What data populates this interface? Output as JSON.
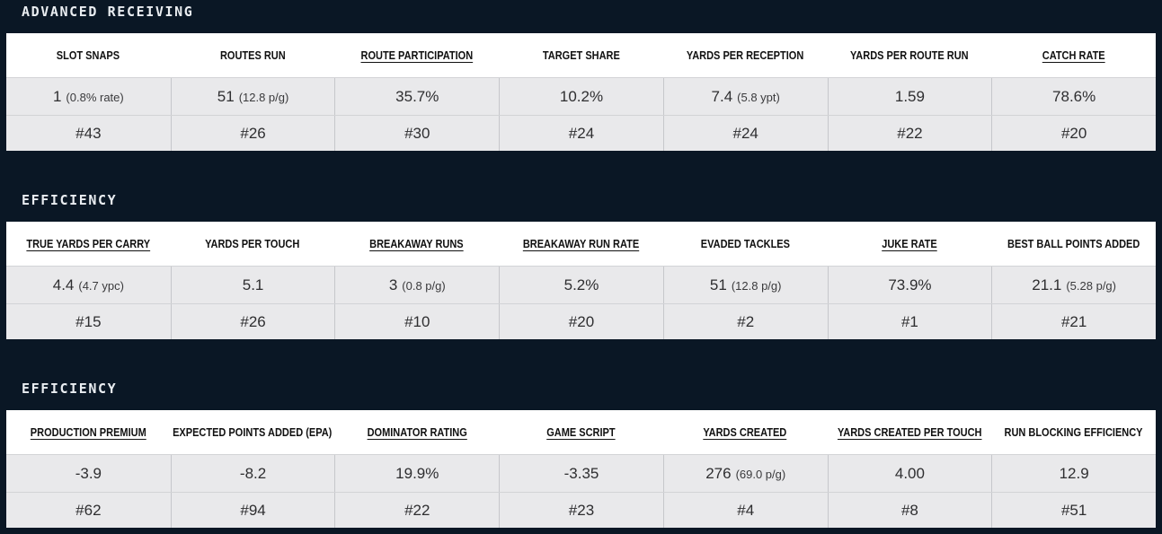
{
  "colors": {
    "page_background": "#0a1725",
    "section_title_text": "#e9edf1",
    "header_row_background": "#ffffff",
    "header_text": "#111111",
    "data_row_background": "#e9e9eb",
    "data_text": "#2e2e30",
    "row_divider": "#d2d3d6",
    "column_divider": "#c6c7cb"
  },
  "sections": [
    {
      "title": "ADVANCED RECEIVING",
      "columns": [
        {
          "label": "SLOT SNAPS",
          "underlined": false,
          "value": "1",
          "note": "(0.8% rate)",
          "rank": "#43"
        },
        {
          "label": "ROUTES RUN",
          "underlined": false,
          "value": "51",
          "note": "(12.8 p/g)",
          "rank": "#26"
        },
        {
          "label": "ROUTE PARTICIPATION",
          "underlined": true,
          "value": "35.7%",
          "note": "",
          "rank": "#30"
        },
        {
          "label": "TARGET SHARE",
          "underlined": false,
          "value": "10.2%",
          "note": "",
          "rank": "#24"
        },
        {
          "label": "YARDS PER RECEPTION",
          "underlined": false,
          "value": "7.4",
          "note": "(5.8 ypt)",
          "rank": "#24"
        },
        {
          "label": "YARDS PER ROUTE RUN",
          "underlined": false,
          "value": "1.59",
          "note": "",
          "rank": "#22"
        },
        {
          "label": "CATCH RATE",
          "underlined": true,
          "value": "78.6%",
          "note": "",
          "rank": "#20"
        }
      ]
    },
    {
      "title": "EFFICIENCY",
      "columns": [
        {
          "label": "TRUE YARDS PER CARRY",
          "underlined": true,
          "value": "4.4",
          "note": "(4.7 ypc)",
          "rank": "#15"
        },
        {
          "label": "YARDS PER TOUCH",
          "underlined": false,
          "value": "5.1",
          "note": "",
          "rank": "#26"
        },
        {
          "label": "BREAKAWAY RUNS",
          "underlined": true,
          "value": "3",
          "note": "(0.8 p/g)",
          "rank": "#10"
        },
        {
          "label": "BREAKAWAY RUN RATE",
          "underlined": true,
          "value": "5.2%",
          "note": "",
          "rank": "#20"
        },
        {
          "label": "EVADED TACKLES",
          "underlined": false,
          "value": "51",
          "note": "(12.8 p/g)",
          "rank": "#2"
        },
        {
          "label": "JUKE RATE",
          "underlined": true,
          "value": "73.9%",
          "note": "",
          "rank": "#1"
        },
        {
          "label": "BEST BALL POINTS ADDED",
          "underlined": false,
          "value": "21.1",
          "note": "(5.28 p/g)",
          "rank": "#21"
        }
      ]
    },
    {
      "title": "EFFICIENCY",
      "columns": [
        {
          "label": "PRODUCTION PREMIUM",
          "underlined": true,
          "value": "-3.9",
          "note": "",
          "rank": "#62"
        },
        {
          "label": "EXPECTED POINTS ADDED (EPA)",
          "underlined": false,
          "value": "-8.2",
          "note": "",
          "rank": "#94"
        },
        {
          "label": "DOMINATOR RATING",
          "underlined": true,
          "value": "19.9%",
          "note": "",
          "rank": "#22"
        },
        {
          "label": "GAME SCRIPT",
          "underlined": true,
          "value": "-3.35",
          "note": "",
          "rank": "#23"
        },
        {
          "label": "YARDS CREATED",
          "underlined": true,
          "value": "276",
          "note": "(69.0 p/g)",
          "rank": "#4"
        },
        {
          "label": "YARDS CREATED PER TOUCH",
          "underlined": true,
          "value": "4.00",
          "note": "",
          "rank": "#8"
        },
        {
          "label": "RUN BLOCKING EFFICIENCY",
          "underlined": false,
          "value": "12.9",
          "note": "",
          "rank": "#51"
        }
      ]
    }
  ]
}
